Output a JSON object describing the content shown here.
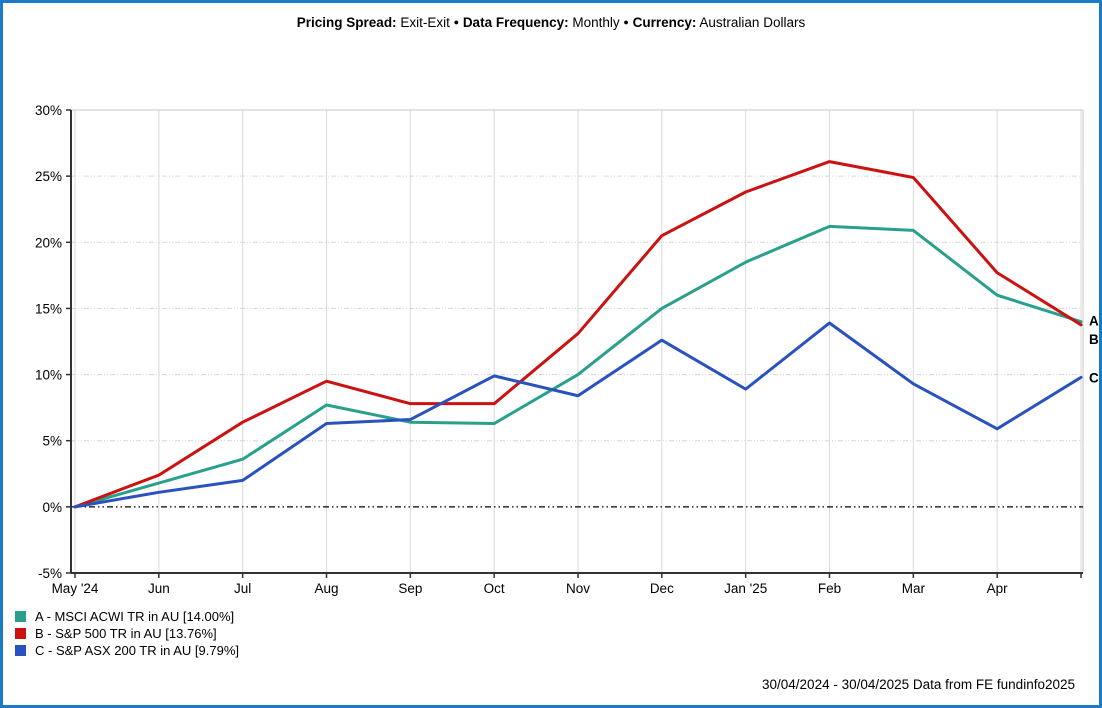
{
  "header": {
    "segments": [
      {
        "text": "Pricing Spread:",
        "bold": true
      },
      {
        "text": "Exit-Exit",
        "bold": false
      },
      {
        "text": "●",
        "bold": false
      },
      {
        "text": "Data Frequency:",
        "bold": true
      },
      {
        "text": "Monthly",
        "bold": false
      },
      {
        "text": "●",
        "bold": false
      },
      {
        "text": "Currency:",
        "bold": true
      },
      {
        "text": "Australian Dollars",
        "bold": false
      }
    ]
  },
  "chart_data": {
    "type": "line",
    "title": "Pricing Spread: Exit-Exit / Data Frequency: Monthly / Currency: Australian Dollars",
    "xlabel": "",
    "ylabel": "",
    "y_unit": "%",
    "ylim": [
      -5,
      30
    ],
    "grid": true,
    "legend_position": "bottom-left",
    "x_tick_labels": [
      "May '24",
      "Jun",
      "Jul",
      "Aug",
      "Sep",
      "Oct",
      "Nov",
      "Dec",
      "Jan '25",
      "Feb",
      "Mar",
      "Apr"
    ],
    "y_ticks": [
      30,
      25,
      20,
      15,
      10,
      5,
      0,
      -5
    ],
    "y_tick_labels": [
      "30%",
      "25%",
      "20%",
      "15%",
      "10%",
      "5%",
      "0%",
      "-5%"
    ],
    "series": [
      {
        "id": "A",
        "name": "MSCI ACWI TR in AU",
        "color": "#28a08c",
        "values": [
          0,
          1.8,
          3.6,
          7.7,
          6.4,
          6.3,
          10.0,
          15.0,
          18.5,
          21.2,
          20.9,
          16.0,
          14.0
        ]
      },
      {
        "id": "B",
        "name": "S&P 500 TR in AU",
        "color": "#cc1111",
        "values": [
          0,
          2.4,
          6.4,
          9.5,
          7.8,
          7.8,
          13.1,
          20.5,
          23.8,
          26.1,
          24.9,
          17.7,
          13.76
        ]
      },
      {
        "id": "C",
        "name": "S&P ASX 200 TR in AU",
        "color": "#2a52be",
        "values": [
          0,
          1.1,
          2.0,
          6.3,
          6.6,
          9.9,
          8.4,
          12.6,
          8.9,
          13.9,
          9.3,
          5.9,
          9.79
        ]
      }
    ],
    "end_labels": [
      {
        "text": "A",
        "value": 14.0,
        "dy": 4
      },
      {
        "text": "B",
        "value": 13.76,
        "dy": 19
      },
      {
        "text": "C",
        "value": 9.79,
        "dy": 5
      }
    ]
  },
  "legend": {
    "items": [
      {
        "swatch": "#28a08c",
        "label": "A - MSCI ACWI TR in AU [14.00%]"
      },
      {
        "swatch": "#cc1111",
        "label": "B - S&P 500 TR in AU [13.76%]"
      },
      {
        "swatch": "#2a52be",
        "label": "C - S&P ASX 200 TR in AU [9.79%]"
      }
    ]
  },
  "footer": {
    "text": "30/04/2024 - 30/04/2025 Data from FE fundinfo2025"
  },
  "colors": {
    "frame": "#1a7ac8",
    "axis": "#333333",
    "grid_dashed": "#d6d6d6",
    "grid_vertical": "#dadada",
    "plot_border": "#c8c8c8",
    "zero_line": "#000000",
    "text": "#000000"
  }
}
